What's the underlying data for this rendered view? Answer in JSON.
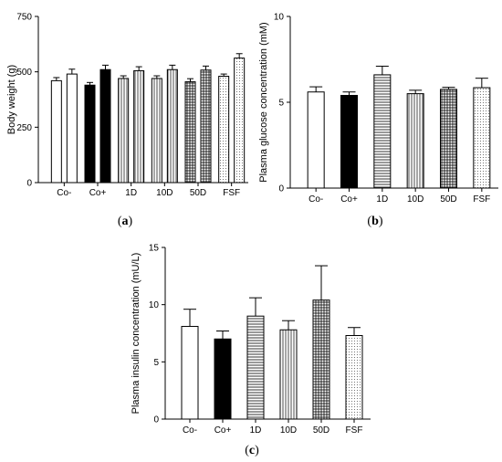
{
  "patterns": {
    "open": "open-fill",
    "solid": "solid-fill",
    "hstripe": "horizontal-stripes",
    "vstripe": "vertical-stripes",
    "grid": "crosshatch-grid",
    "dots": "dotted-fill"
  },
  "chart_data": [
    {
      "id": "a",
      "type": "bar",
      "panel_label": {
        "open": "(",
        "letter": "a",
        "close": ")"
      },
      "ylabel": "Body weight (g)",
      "ylim": [
        0,
        750
      ],
      "yticks": [
        "0",
        "250",
        "500",
        "750"
      ],
      "categories": [
        "Co-",
        "Co+",
        "1D",
        "10D",
        "50D",
        "FSF"
      ],
      "pattern_by_group": [
        "open",
        "solid",
        "vstripe",
        "vstripe",
        "grid",
        "dots"
      ],
      "series": [
        {
          "values": [
            460,
            440,
            470,
            470,
            455,
            480
          ],
          "errors": [
            14,
            12,
            12,
            12,
            14,
            10
          ]
        },
        {
          "values": [
            490,
            510,
            505,
            510,
            508,
            562
          ],
          "errors": [
            22,
            20,
            18,
            20,
            18,
            20
          ]
        }
      ]
    },
    {
      "id": "b",
      "type": "bar",
      "panel_label": {
        "open": "(",
        "letter": "b",
        "close": ")"
      },
      "ylabel": "Plasma glucose concentration (mM)",
      "ylim": [
        0,
        10
      ],
      "yticks": [
        "0",
        "5",
        "10"
      ],
      "categories": [
        "Co-",
        "Co+",
        "1D",
        "10D",
        "50D",
        "FSF"
      ],
      "pattern_by_group": [
        "open",
        "solid",
        "hstripe",
        "vstripe",
        "grid",
        "dots"
      ],
      "series": [
        {
          "values": [
            5.6,
            5.4,
            6.6,
            5.5,
            5.75,
            5.85
          ],
          "errors": [
            0.3,
            0.2,
            0.5,
            0.2,
            0.12,
            0.55
          ]
        }
      ]
    },
    {
      "id": "c",
      "type": "bar",
      "panel_label": {
        "open": "(",
        "letter": "c",
        "close": ")"
      },
      "ylabel": "Plasma insulin concentration (mU/L)",
      "ylim": [
        0,
        15
      ],
      "yticks": [
        "0",
        "5",
        "10",
        "15"
      ],
      "categories": [
        "Co-",
        "Co+",
        "1D",
        "10D",
        "50D",
        "FSF"
      ],
      "pattern_by_group": [
        "open",
        "solid",
        "hstripe",
        "vstripe",
        "grid",
        "dots"
      ],
      "series": [
        {
          "values": [
            8.1,
            7.0,
            9.0,
            7.8,
            10.4,
            7.3
          ],
          "errors": [
            1.5,
            0.7,
            1.6,
            0.8,
            3.0,
            0.7
          ]
        }
      ]
    }
  ]
}
